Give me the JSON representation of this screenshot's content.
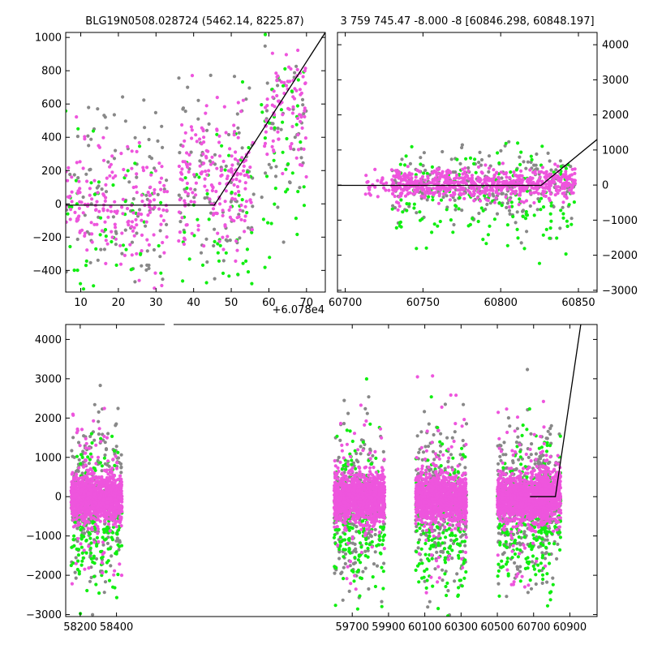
{
  "figure": {
    "title_left": "BLG19N0508.028724 (5462.14, 8225.87)",
    "title_right": "3 759 745.47 -8.000 -8 [60846.298, 60848.197]",
    "offset_label": "+6.078e4"
  },
  "colors": {
    "magenta": "#ee55dd",
    "green": "#11ee11",
    "gray": "#888888",
    "model": "#000000"
  },
  "chart_data": [
    {
      "name": "zoom-panel",
      "type": "scatter",
      "x_offset": 60780,
      "xlim": [
        6,
        75
      ],
      "ylim": [
        -530,
        1030
      ],
      "xticks": [
        10,
        20,
        30,
        40,
        50,
        60,
        70
      ],
      "yticks": [
        -400,
        -200,
        0,
        200,
        400,
        600,
        800,
        1000
      ],
      "model_line": [
        [
          6,
          -8
        ],
        [
          45.5,
          -8
        ],
        [
          75,
          1030
        ]
      ],
      "series": [
        {
          "color": "magenta",
          "clusters": [
            {
              "x": [
                6,
                33
              ],
              "y_center": -30,
              "y_sd": 180,
              "n": 190
            },
            {
              "x": [
                36,
                56
              ],
              "y_center": 140,
              "y_sd": 200,
              "n": 200
            },
            {
              "x": [
                58,
                70
              ],
              "y_center": 580,
              "y_sd": 200,
              "n": 90
            }
          ]
        },
        {
          "color": "gray",
          "clusters": [
            {
              "x": [
                6,
                33
              ],
              "y_center": 80,
              "y_sd": 300,
              "n": 100
            },
            {
              "x": [
                36,
                56
              ],
              "y_center": 120,
              "y_sd": 300,
              "n": 90
            },
            {
              "x": [
                58,
                70
              ],
              "y_center": 500,
              "y_sd": 300,
              "n": 50
            }
          ]
        },
        {
          "color": "green",
          "clusters": [
            {
              "x": [
                6,
                33
              ],
              "y_center": -150,
              "y_sd": 260,
              "n": 55
            },
            {
              "x": [
                36,
                56
              ],
              "y_center": -100,
              "y_sd": 300,
              "n": 55
            },
            {
              "x": [
                58,
                70
              ],
              "y_center": 250,
              "y_sd": 350,
              "n": 45
            }
          ]
        }
      ]
    },
    {
      "name": "season-panel",
      "type": "scatter",
      "xlim": [
        60695,
        60862
      ],
      "ylim": [
        -3050,
        4350
      ],
      "xticks": [
        60700,
        60750,
        60800,
        60850
      ],
      "yticks": [
        -3000,
        -2000,
        -1000,
        0,
        1000,
        2000,
        3000,
        4000
      ],
      "model_line": [
        [
          60695,
          -10
        ],
        [
          60826,
          -10
        ],
        [
          60862,
          1300
        ]
      ],
      "series": [
        {
          "color": "magenta",
          "clusters": [
            {
              "x": [
                60712,
                60730
              ],
              "y_center": 50,
              "y_sd": 180,
              "n": 25
            },
            {
              "x": [
                60730,
                60848
              ],
              "y_center": 20,
              "y_sd": 220,
              "n": 650
            }
          ]
        },
        {
          "color": "gray",
          "clusters": [
            {
              "x": [
                60730,
                60848
              ],
              "y_center": -80,
              "y_sd": 550,
              "n": 220
            }
          ]
        },
        {
          "color": "green",
          "clusters": [
            {
              "x": [
                60730,
                60848
              ],
              "y_center": -400,
              "y_sd": 700,
              "n": 180
            }
          ]
        }
      ]
    },
    {
      "name": "full-panel",
      "type": "scatter",
      "xlim": [
        58120,
        61050
      ],
      "ylim": [
        -3050,
        4380
      ],
      "xticks": [
        58200,
        58400,
        59700,
        59900,
        60100,
        60300,
        60500,
        60700,
        60900
      ],
      "yticks": [
        -3000,
        -2000,
        -1000,
        0,
        1000,
        2000,
        3000,
        4000
      ],
      "model_line": [
        [
          60680,
          0
        ],
        [
          60820,
          0
        ],
        [
          60960,
          4380
        ]
      ],
      "seasons": [
        [
          58140,
          58440
        ],
        [
          59590,
          59890
        ],
        [
          60040,
          60340
        ],
        [
          60490,
          60790
        ],
        [
          60880,
          61080
        ]
      ],
      "series": [
        {
          "color": "magenta",
          "clusters": [
            {
              "x": [
                58150,
                58430
              ],
              "y_center": -50,
              "y_sd": 280,
              "n": 1100
            },
            {
              "x": [
                58150,
                58430
              ],
              "y_center": 0,
              "y_sd": 1100,
              "n": 100
            },
            {
              "x": [
                59600,
                59880
              ],
              "y_center": -50,
              "y_sd": 280,
              "n": 1100
            },
            {
              "x": [
                59600,
                59880
              ],
              "y_center": 0,
              "y_sd": 1100,
              "n": 100
            },
            {
              "x": [
                60050,
                60330
              ],
              "y_center": -50,
              "y_sd": 280,
              "n": 1100
            },
            {
              "x": [
                60050,
                60330
              ],
              "y_center": 0,
              "y_sd": 1100,
              "n": 100
            },
            {
              "x": [
                60500,
                60780
              ],
              "y_center": -50,
              "y_sd": 280,
              "n": 1100
            },
            {
              "x": [
                60500,
                60780
              ],
              "y_center": 0,
              "y_sd": 1100,
              "n": 100
            },
            {
              "x": [
                60730,
                60850
              ],
              "y_center": 50,
              "y_sd": 350,
              "n": 400
            }
          ]
        },
        {
          "color": "gray",
          "clusters": [
            {
              "x": [
                58150,
                58430
              ],
              "y_center": -150,
              "y_sd": 950,
              "n": 280
            },
            {
              "x": [
                59600,
                59880
              ],
              "y_center": -150,
              "y_sd": 950,
              "n": 280
            },
            {
              "x": [
                60050,
                60330
              ],
              "y_center": -150,
              "y_sd": 950,
              "n": 280
            },
            {
              "x": [
                60500,
                60780
              ],
              "y_center": -150,
              "y_sd": 950,
              "n": 280
            },
            {
              "x": [
                60730,
                60850
              ],
              "y_center": -100,
              "y_sd": 800,
              "n": 90
            }
          ]
        },
        {
          "color": "green",
          "clusters": [
            {
              "x": [
                58150,
                58430
              ],
              "y_center": -600,
              "y_sd": 950,
              "n": 220
            },
            {
              "x": [
                59600,
                59880
              ],
              "y_center": -600,
              "y_sd": 950,
              "n": 220
            },
            {
              "x": [
                60050,
                60330
              ],
              "y_center": -600,
              "y_sd": 950,
              "n": 220
            },
            {
              "x": [
                60500,
                60780
              ],
              "y_center": -600,
              "y_sd": 950,
              "n": 220
            },
            {
              "x": [
                60730,
                60850
              ],
              "y_center": -500,
              "y_sd": 900,
              "n": 80
            }
          ]
        }
      ]
    }
  ]
}
